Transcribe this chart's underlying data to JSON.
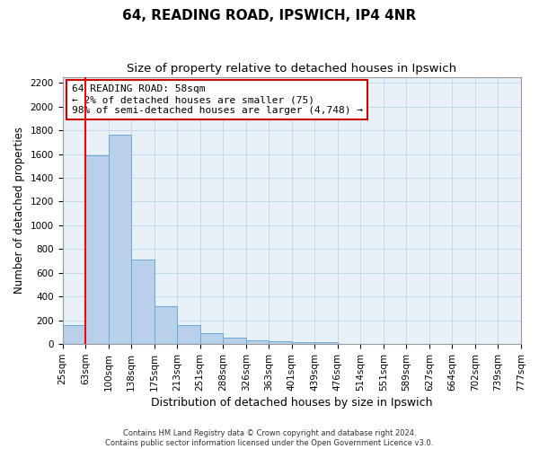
{
  "title1": "64, READING ROAD, IPSWICH, IP4 4NR",
  "title2": "Size of property relative to detached houses in Ipswich",
  "xlabel": "Distribution of detached houses by size in Ipswich",
  "ylabel": "Number of detached properties",
  "bar_values": [
    160,
    1590,
    1760,
    710,
    320,
    160,
    90,
    55,
    35,
    25,
    20,
    20,
    0,
    0,
    0,
    0,
    0,
    0,
    0,
    0
  ],
  "bin_labels": [
    "25sqm",
    "63sqm",
    "100sqm",
    "138sqm",
    "175sqm",
    "213sqm",
    "251sqm",
    "288sqm",
    "326sqm",
    "363sqm",
    "401sqm",
    "439sqm",
    "476sqm",
    "514sqm",
    "551sqm",
    "589sqm",
    "627sqm",
    "664sqm",
    "702sqm",
    "739sqm",
    "777sqm"
  ],
  "bar_color": "#b8d0ea",
  "bar_edge_color": "#6aaad4",
  "grid_color": "#c8d8ec",
  "background_color": "#e8f0f8",
  "red_line_x": 1.5,
  "annotation_text": "64 READING ROAD: 58sqm\n← 2% of detached houses are smaller (75)\n98% of semi-detached houses are larger (4,748) →",
  "annotation_box_color": "#ffffff",
  "annotation_border_color": "#cc0000",
  "ylim": [
    0,
    2250
  ],
  "yticks": [
    0,
    200,
    400,
    600,
    800,
    1000,
    1200,
    1400,
    1600,
    1800,
    2000,
    2200
  ],
  "footnote": "Contains HM Land Registry data © Crown copyright and database right 2024.\nContains public sector information licensed under the Open Government Licence v3.0.",
  "title1_fontsize": 11,
  "title2_fontsize": 9.5,
  "xlabel_fontsize": 9,
  "ylabel_fontsize": 8.5,
  "tick_fontsize": 7.5,
  "annotation_fontsize": 8,
  "footnote_fontsize": 6
}
